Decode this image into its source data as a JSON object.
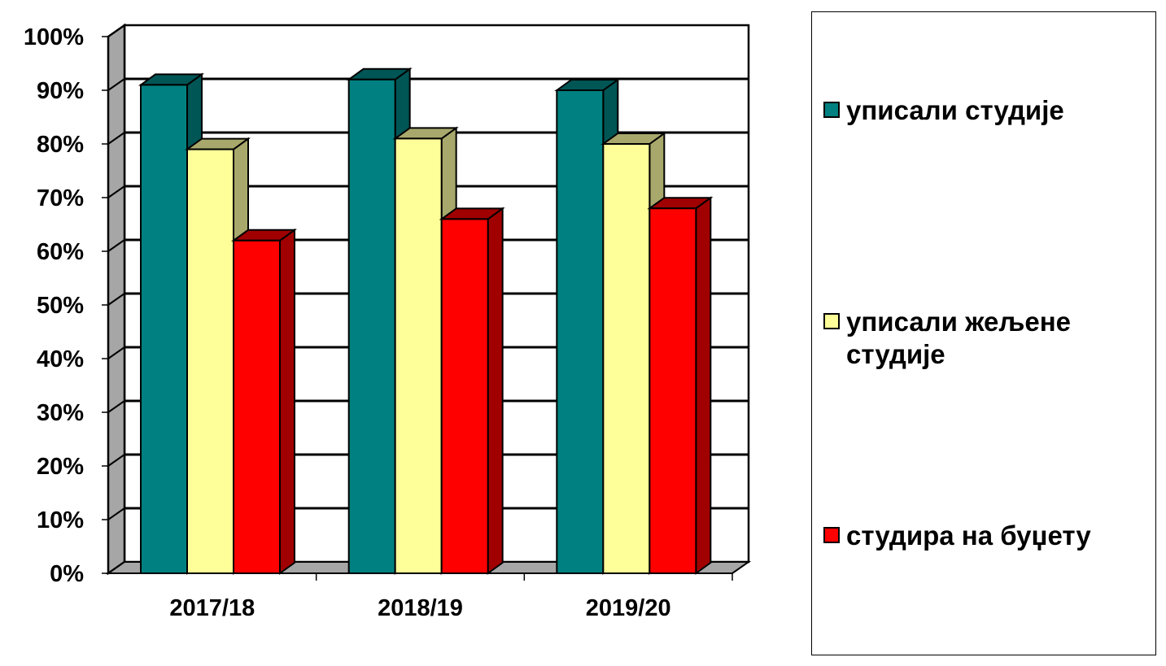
{
  "chart_data": {
    "type": "bar",
    "categories": [
      "2017/18",
      "2018/19",
      "2019/20"
    ],
    "series": [
      {
        "name": "уписали студије",
        "values": [
          91,
          92,
          90
        ],
        "color": "#008080",
        "side_color": "#005555"
      },
      {
        "name": "уписали жељене студије",
        "values": [
          79,
          81,
          80
        ],
        "color": "#FFFF99",
        "side_color": "#A8A86C"
      },
      {
        "name": "студира на буџету",
        "values": [
          62,
          66,
          68
        ],
        "color": "#FF0000",
        "side_color": "#A00000"
      }
    ],
    "yticks": [
      "0%",
      "10%",
      "20%",
      "30%",
      "40%",
      "50%",
      "60%",
      "70%",
      "80%",
      "90%",
      "100%"
    ],
    "ylim": [
      0,
      100
    ],
    "grid": true,
    "legend_position": "right",
    "wall_color": "#ffffff",
    "side_wall_color": "#a6a6a6",
    "floor_color": "#a6a6a6"
  }
}
